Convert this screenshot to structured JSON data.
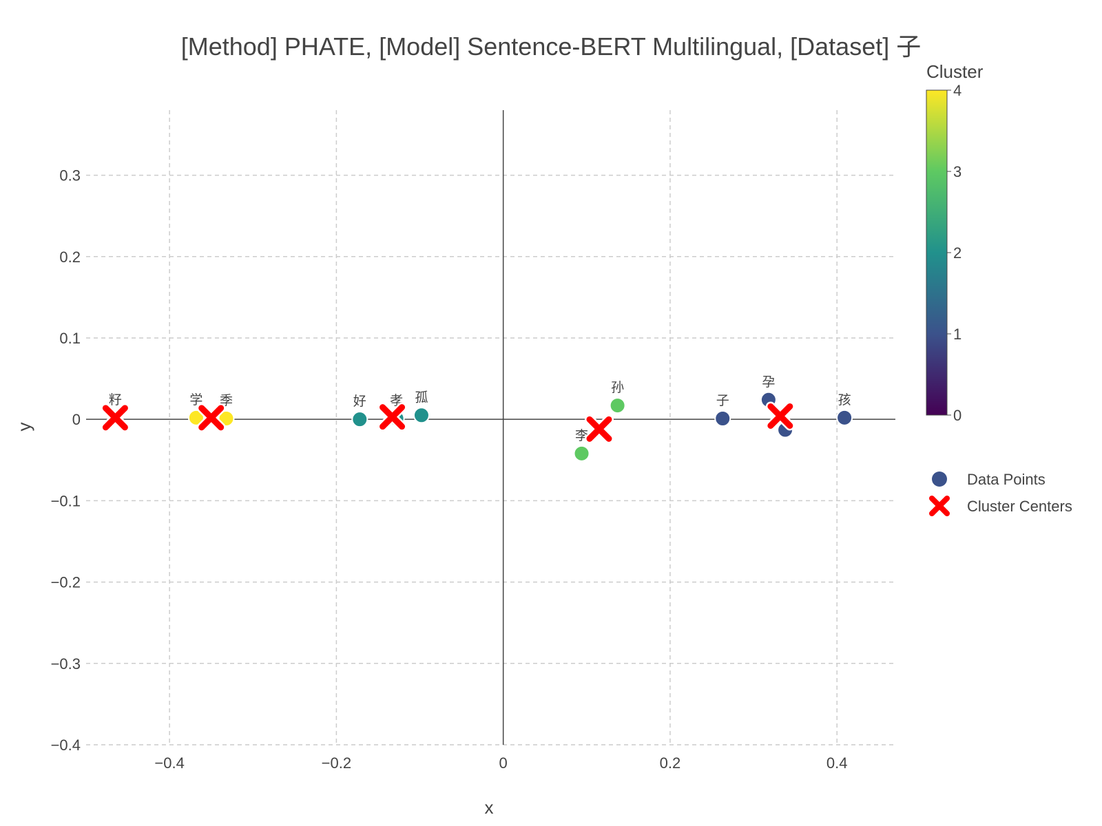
{
  "chart_data": {
    "type": "scatter",
    "title": "[Method] PHATE, [Model] Sentence-BERT Multilingual, [Dataset] 子",
    "xlabel": "x",
    "ylabel": "y",
    "xlim": [
      -0.5,
      0.47
    ],
    "ylim": [
      -0.4,
      0.38
    ],
    "x_ticks": [
      -0.4,
      -0.2,
      0,
      0.2,
      0.4
    ],
    "x_tick_labels": [
      "−0.4",
      "−0.2",
      "0",
      "0.2",
      "0.4"
    ],
    "y_ticks": [
      -0.4,
      -0.3,
      -0.2,
      -0.1,
      0,
      0.1,
      0.2,
      0.3
    ],
    "y_tick_labels": [
      "−0.4",
      "−0.3",
      "−0.2",
      "−0.1",
      "0",
      "0.1",
      "0.2",
      "0.3"
    ],
    "grid": true,
    "legend": {
      "placement": "right",
      "entries": [
        "Data Points",
        "Cluster Centers"
      ]
    },
    "colorbar": {
      "title": "Cluster",
      "min": 0,
      "max": 4,
      "ticks": [
        "0",
        "1",
        "2",
        "3",
        "4"
      ],
      "colorscale": [
        "#440154",
        "#3b528b",
        "#21918c",
        "#5ec962",
        "#fde725"
      ]
    },
    "points": [
      {
        "label": "籽",
        "x": -0.465,
        "y": 0.002,
        "cluster": 4
      },
      {
        "label": "学",
        "x": -0.368,
        "y": 0.002,
        "cluster": 4
      },
      {
        "label": "季",
        "x": -0.332,
        "y": 0.001,
        "cluster": 4
      },
      {
        "label": "好",
        "x": -0.172,
        "y": 0.0,
        "cluster": 2
      },
      {
        "label": "孝",
        "x": -0.128,
        "y": 0.001,
        "cluster": 2
      },
      {
        "label": "孤",
        "x": -0.098,
        "y": 0.005,
        "cluster": 2
      },
      {
        "label": "李",
        "x": 0.094,
        "y": -0.042,
        "cluster": 3
      },
      {
        "label": "孙",
        "x": 0.137,
        "y": 0.017,
        "cluster": 3
      },
      {
        "label": "子",
        "x": 0.263,
        "y": 0.001,
        "cluster": 1
      },
      {
        "label": "孕",
        "x": 0.318,
        "y": 0.024,
        "cluster": 1
      },
      {
        "label": "",
        "x": 0.338,
        "y": -0.013,
        "cluster": 1
      },
      {
        "label": "孩",
        "x": 0.409,
        "y": 0.002,
        "cluster": 1
      }
    ],
    "centers": [
      {
        "x": -0.465,
        "y": 0.002,
        "cluster": 4
      },
      {
        "x": -0.35,
        "y": 0.002,
        "cluster": 4
      },
      {
        "x": -0.133,
        "y": 0.003,
        "cluster": 2
      },
      {
        "x": 0.115,
        "y": -0.012,
        "cluster": 3
      },
      {
        "x": 0.332,
        "y": 0.004,
        "cluster": 1
      }
    ]
  }
}
